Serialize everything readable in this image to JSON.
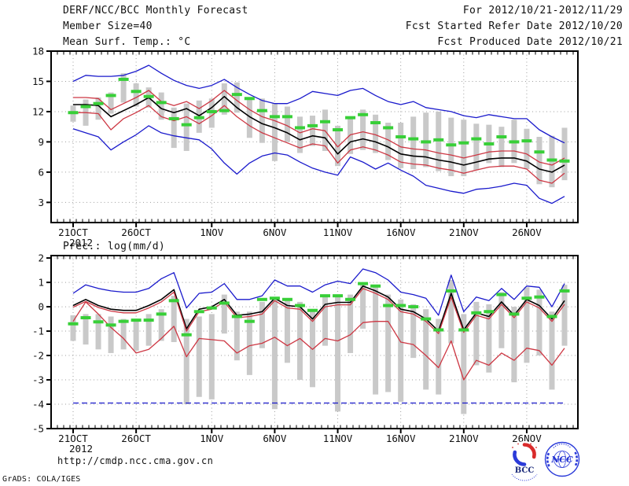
{
  "header": {
    "left": [
      "DERF/NCC/BCC Monthly Forecast",
      "Member Size=40"
    ],
    "right": [
      "For 2012/10/21-2012/11/29",
      "Fcst Started Refer Date 2012/10/20",
      "Fcst Produced Date 2012/10/21"
    ]
  },
  "footer": {
    "url": "http://cmdp.ncc.cma.gov.cn",
    "credit": "GrADS: COLA/IGES"
  },
  "logos": {
    "bcc_label": "BCC",
    "ncc_label": "NCC"
  },
  "colors": {
    "line_blue": "#1a1acc",
    "line_red": "#cd3743",
    "line_black": "#000000",
    "obs_green": "#38cf38",
    "spread_gray": "#c9c9c9",
    "grid_gray": "#9e9e9e",
    "text": "#111111",
    "logo_blue": "#2b3bd9",
    "logo_red": "#d92b2b"
  },
  "chart_data": [
    {
      "type": "line",
      "name": "temperature",
      "title": "Mean Surf. Temp.: °C",
      "year_label": "2012",
      "days": 40,
      "ylim": [
        1,
        18
      ],
      "yticks": [
        3,
        6,
        9,
        12,
        15,
        18
      ],
      "grid": true,
      "x_ticks": [
        {
          "day": 0,
          "label": "21OCT"
        },
        {
          "day": 5,
          "label": "26OCT"
        },
        {
          "day": 11,
          "label": "1NOV"
        },
        {
          "day": 16,
          "label": "6NOV"
        },
        {
          "day": 21,
          "label": "11NOV"
        },
        {
          "day": 26,
          "label": "16NOV"
        },
        {
          "day": 31,
          "label": "21NOV"
        },
        {
          "day": 36,
          "label": "26NOV"
        }
      ],
      "series": [
        {
          "name": "ensemble-max",
          "color": "#1a1acc",
          "values": [
            15.0,
            15.6,
            15.5,
            15.5,
            15.6,
            16.0,
            16.6,
            15.8,
            15.1,
            14.6,
            14.3,
            14.6,
            15.2,
            14.4,
            13.7,
            13.1,
            12.8,
            12.8,
            13.3,
            14.0,
            13.8,
            13.6,
            14.1,
            14.3,
            13.6,
            13.0,
            12.7,
            13.0,
            12.4,
            12.2,
            12.0,
            11.6,
            11.4,
            11.7,
            11.5,
            11.3,
            11.3,
            10.2,
            9.5,
            8.9
          ]
        },
        {
          "name": "mean-plus-std",
          "color": "#cd3743",
          "values": [
            13.4,
            13.4,
            13.3,
            12.2,
            12.8,
            13.4,
            14.1,
            13.0,
            12.6,
            13.0,
            12.3,
            13.1,
            14.1,
            13.1,
            12.2,
            11.5,
            11.1,
            10.6,
            9.9,
            10.3,
            10.1,
            8.5,
            9.7,
            10.0,
            9.7,
            9.2,
            8.5,
            8.3,
            8.2,
            7.9,
            7.7,
            7.4,
            7.7,
            8.0,
            8.1,
            8.1,
            7.8,
            7.0,
            6.7,
            7.4
          ]
        },
        {
          "name": "ensemble-mean",
          "color": "#000000",
          "values": [
            12.7,
            12.7,
            12.6,
            11.5,
            12.1,
            12.7,
            13.4,
            12.3,
            11.9,
            12.3,
            11.6,
            12.4,
            13.5,
            12.4,
            11.5,
            10.8,
            10.4,
            9.9,
            9.2,
            9.6,
            9.4,
            7.8,
            9.0,
            9.3,
            9.0,
            8.5,
            7.8,
            7.6,
            7.5,
            7.2,
            7.0,
            6.7,
            7.0,
            7.3,
            7.4,
            7.4,
            7.1,
            6.3,
            6.0,
            6.7
          ]
        },
        {
          "name": "mean-minus-std",
          "color": "#cd3743",
          "values": [
            11.9,
            11.9,
            11.8,
            10.2,
            11.3,
            11.9,
            12.6,
            11.5,
            11.1,
            11.5,
            10.8,
            11.6,
            12.6,
            11.5,
            10.6,
            9.9,
            9.4,
            8.9,
            8.4,
            8.8,
            8.6,
            6.9,
            8.2,
            8.5,
            8.2,
            7.7,
            7.0,
            6.8,
            6.7,
            6.4,
            6.2,
            5.9,
            6.2,
            6.5,
            6.6,
            6.6,
            6.3,
            5.2,
            4.9,
            5.9
          ]
        },
        {
          "name": "ensemble-min",
          "color": "#1a1acc",
          "values": [
            10.3,
            9.9,
            9.5,
            8.2,
            9.0,
            9.7,
            10.6,
            9.9,
            9.6,
            9.4,
            9.2,
            8.3,
            6.9,
            5.8,
            6.9,
            7.6,
            7.9,
            7.7,
            7.0,
            6.4,
            6.0,
            5.7,
            7.5,
            7.0,
            6.3,
            6.9,
            6.2,
            5.6,
            4.7,
            4.4,
            4.1,
            3.9,
            4.3,
            4.4,
            4.6,
            4.9,
            4.7,
            3.4,
            2.9,
            3.6
          ]
        }
      ],
      "obs_marks": {
        "name": "observation",
        "color": "#38cf38",
        "values": [
          11.9,
          12.5,
          12.8,
          13.6,
          15.2,
          14.0,
          13.5,
          12.9,
          11.3,
          10.7,
          11.4,
          12.0,
          12.1,
          13.7,
          13.3,
          12.1,
          11.5,
          11.5,
          10.4,
          10.6,
          11.0,
          10.2,
          11.4,
          11.7,
          10.9,
          10.4,
          9.5,
          9.3,
          9.0,
          9.2,
          8.7,
          8.9,
          9.3,
          8.8,
          9.5,
          9.0,
          9.1,
          8.0,
          7.2,
          7.1
        ]
      },
      "spread_bars": {
        "name": "member-spread",
        "color": "#c9c9c9",
        "lo": [
          11.0,
          10.6,
          11.2,
          11.8,
          12.9,
          12.5,
          12.4,
          11.2,
          8.4,
          8.1,
          9.9,
          10.4,
          11.7,
          11.9,
          9.4,
          8.9,
          7.1,
          9.0,
          7.9,
          8.6,
          8.1,
          6.6,
          7.8,
          8.2,
          7.9,
          7.2,
          6.4,
          6.3,
          6.5,
          6.1,
          5.6,
          5.6,
          6.2,
          6.9,
          6.5,
          6.9,
          6.3,
          4.8,
          4.5,
          5.2
        ],
        "hi": [
          12.6,
          13.2,
          13.4,
          13.9,
          15.8,
          14.8,
          14.4,
          13.9,
          12.4,
          12.8,
          13.1,
          13.3,
          14.8,
          14.9,
          13.4,
          13.3,
          12.8,
          12.5,
          11.5,
          11.6,
          12.2,
          10.6,
          11.4,
          12.2,
          11.7,
          10.9,
          10.9,
          11.5,
          11.9,
          12.0,
          11.4,
          11.2,
          10.8,
          10.7,
          10.5,
          11.2,
          10.3,
          9.5,
          9.6,
          10.4
        ]
      }
    },
    {
      "type": "line",
      "name": "precipitation",
      "title": "Prec.: log(mm/d)",
      "year_label": "2012",
      "days": 40,
      "ylim": [
        -5,
        2.1
      ],
      "yticks": [
        -5,
        -4,
        -3,
        -2,
        -1,
        0,
        1,
        2
      ],
      "grid": true,
      "x_ticks": [
        {
          "day": 0,
          "label": "21OCT"
        },
        {
          "day": 5,
          "label": "26OCT"
        },
        {
          "day": 11,
          "label": "1NOV"
        },
        {
          "day": 16,
          "label": "6NOV"
        },
        {
          "day": 21,
          "label": "11NOV"
        },
        {
          "day": 26,
          "label": "16NOV"
        },
        {
          "day": 31,
          "label": "21NOV"
        },
        {
          "day": 36,
          "label": "26NOV"
        }
      ],
      "baseline": {
        "name": "precip-floor",
        "value": -3.95,
        "color": "#1a1acc",
        "dashed": true
      },
      "series": [
        {
          "name": "ensemble-max",
          "color": "#1a1acc",
          "values": [
            0.55,
            0.9,
            0.75,
            0.65,
            0.6,
            0.6,
            0.75,
            1.15,
            1.4,
            -0.05,
            0.55,
            0.6,
            0.95,
            0.3,
            0.3,
            0.45,
            1.1,
            0.85,
            0.85,
            0.6,
            0.9,
            1.05,
            0.95,
            1.55,
            1.4,
            1.1,
            0.6,
            0.5,
            0.35,
            -0.35,
            1.3,
            -0.2,
            0.4,
            0.25,
            0.75,
            0.3,
            0.85,
            0.8,
            0.0,
            0.95
          ]
        },
        {
          "name": "ensemble-mean",
          "color": "#000000",
          "values": [
            0.05,
            0.3,
            0.05,
            -0.1,
            -0.15,
            -0.15,
            0.05,
            0.3,
            0.7,
            -0.9,
            -0.1,
            0.0,
            0.3,
            -0.35,
            -0.3,
            -0.2,
            0.35,
            0.05,
            0.0,
            -0.5,
            0.1,
            0.18,
            0.18,
            0.85,
            0.65,
            0.4,
            -0.1,
            -0.2,
            -0.5,
            -1.0,
            0.55,
            -0.95,
            -0.25,
            -0.4,
            0.2,
            -0.35,
            0.3,
            0.05,
            -0.5,
            0.25
          ]
        },
        {
          "name": "mean-plus-std",
          "color": "#cd3743",
          "values": [
            -0.02,
            0.22,
            -0.03,
            -0.18,
            -0.25,
            -0.25,
            -0.05,
            0.2,
            0.6,
            -1.0,
            -0.2,
            -0.1,
            0.2,
            -0.45,
            -0.4,
            -0.3,
            0.25,
            -0.05,
            -0.1,
            -0.6,
            0.0,
            0.08,
            0.08,
            0.75,
            0.55,
            0.3,
            -0.2,
            -0.3,
            -0.6,
            -1.1,
            0.4,
            -1.05,
            -0.35,
            -0.5,
            0.1,
            -0.45,
            0.2,
            -0.05,
            -0.6,
            0.1
          ]
        },
        {
          "name": "mean-minus-std",
          "color": "#cd3743",
          "values": [
            -0.6,
            0.2,
            -0.3,
            -0.85,
            -1.3,
            -1.9,
            -1.75,
            -1.3,
            -0.8,
            -2.05,
            -1.3,
            -1.35,
            -1.4,
            -1.9,
            -1.6,
            -1.5,
            -1.25,
            -1.6,
            -1.3,
            -1.75,
            -1.3,
            -1.4,
            -1.15,
            -0.65,
            -0.6,
            -0.6,
            -1.45,
            -1.55,
            -2.0,
            -2.5,
            -1.4,
            -3.0,
            -2.2,
            -2.4,
            -1.9,
            -2.2,
            -1.7,
            -1.8,
            -2.4,
            -1.7
          ]
        }
      ],
      "obs_marks": {
        "name": "observation",
        "color": "#38cf38",
        "values": [
          -0.7,
          -0.45,
          -0.62,
          -0.75,
          -0.6,
          -0.55,
          -0.55,
          -0.3,
          0.25,
          -1.15,
          -0.2,
          -0.05,
          0.15,
          -0.4,
          -0.6,
          0.3,
          0.35,
          0.3,
          0.05,
          -0.15,
          0.45,
          0.45,
          0.3,
          0.95,
          0.85,
          0.05,
          0.05,
          0.0,
          -0.5,
          -0.95,
          0.65,
          -0.95,
          -0.25,
          -0.2,
          0.5,
          -0.3,
          0.35,
          0.4,
          -0.4,
          0.65
        ]
      },
      "spread_bars": {
        "name": "member-spread",
        "color": "#c9c9c9",
        "lo": [
          -1.4,
          -1.55,
          -1.75,
          -1.9,
          -1.75,
          -1.8,
          -1.6,
          -1.4,
          -1.45,
          -4.0,
          -3.7,
          -3.8,
          -1.1,
          -2.2,
          -2.8,
          -1.7,
          -4.2,
          -2.3,
          -3.0,
          -3.3,
          -1.6,
          -4.3,
          -1.9,
          -0.9,
          -3.6,
          -3.5,
          -3.9,
          -2.1,
          -3.4,
          -3.6,
          -1.5,
          -4.4,
          -2.4,
          -2.7,
          -1.7,
          -3.1,
          -2.3,
          -2.0,
          -3.4,
          -1.6
        ],
        "hi": [
          -0.35,
          -0.3,
          -0.3,
          -0.4,
          -0.5,
          -0.55,
          -0.3,
          -0.1,
          0.45,
          -0.5,
          -0.4,
          -0.3,
          0.5,
          -0.2,
          -0.2,
          0.2,
          0.4,
          0.3,
          0.2,
          -0.1,
          0.5,
          0.5,
          0.5,
          1.0,
          0.9,
          0.5,
          0.3,
          0.1,
          -0.1,
          -0.5,
          1.1,
          -0.3,
          0.2,
          0.1,
          0.6,
          0.0,
          0.8,
          0.7,
          -0.2,
          0.9
        ]
      }
    }
  ]
}
